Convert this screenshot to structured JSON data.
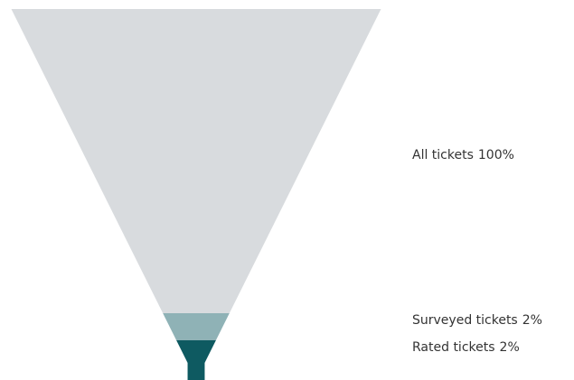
{
  "chart_data": {
    "type": "funnel",
    "categories": [
      "All tickets",
      "Surveyed tickets",
      "Rated tickets"
    ],
    "values": [
      100,
      2,
      2
    ],
    "value_labels": [
      "100%",
      "2%",
      "2%"
    ],
    "colors": [
      "#d8dbde",
      "#8fb2b6",
      "#0e5a61"
    ]
  }
}
